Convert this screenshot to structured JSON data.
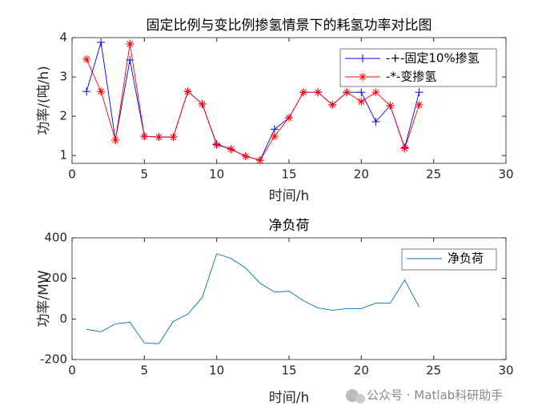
{
  "chart_data": [
    {
      "type": "line",
      "title": "固定比例与变比例掺氢情景下的耗氢功率对比图",
      "xlabel": "时间/h",
      "ylabel": "功率/(吨/h)",
      "x": [
        1,
        2,
        3,
        4,
        5,
        6,
        7,
        8,
        9,
        10,
        11,
        12,
        13,
        14,
        15,
        16,
        17,
        18,
        19,
        20,
        21,
        22,
        23,
        24
      ],
      "series": [
        {
          "name": "-+-固定10%掺氢",
          "color": "#0000ff",
          "marker": "+",
          "values": [
            2.63,
            3.88,
            1.39,
            3.43,
            1.49,
            1.47,
            1.47,
            2.63,
            2.31,
            1.29,
            1.16,
            0.98,
            0.88,
            1.67,
            1.96,
            2.61,
            2.61,
            2.29,
            2.61,
            2.61,
            1.86,
            2.27,
            1.2,
            2.61
          ]
        },
        {
          "name": "-*-变掺氢",
          "color": "#ff0000",
          "marker": "*",
          "values": [
            3.45,
            2.63,
            1.39,
            3.84,
            1.49,
            1.47,
            1.47,
            2.63,
            2.31,
            1.27,
            1.16,
            0.98,
            0.88,
            1.49,
            1.96,
            2.61,
            2.61,
            2.29,
            2.61,
            2.37,
            2.61,
            2.27,
            1.18,
            2.29
          ]
        }
      ],
      "xlim": [
        0,
        30
      ],
      "xticks": [
        0,
        5,
        10,
        15,
        20,
        25,
        30
      ],
      "ylim": [
        0.8,
        4
      ],
      "yticks": [
        1,
        2,
        3,
        4
      ],
      "legend": "northeast"
    },
    {
      "type": "line",
      "title": "净负荷",
      "xlabel": "时间/h",
      "ylabel": "功率/MW",
      "x": [
        1,
        2,
        3,
        4,
        5,
        6,
        7,
        8,
        9,
        10,
        11,
        12,
        13,
        14,
        15,
        16,
        17,
        18,
        19,
        20,
        21,
        22,
        23,
        24
      ],
      "series": [
        {
          "name": "净负荷",
          "color": "#0072bd",
          "marker": null,
          "values": [
            -51,
            -63,
            -24,
            -16,
            -118,
            -122,
            -12,
            24,
            106,
            322,
            298,
            251,
            176,
            133,
            137,
            90,
            55,
            43,
            51,
            51,
            78,
            78,
            192,
            59
          ]
        }
      ],
      "xlim": [
        0,
        30
      ],
      "xticks": [
        0,
        5,
        10,
        15,
        20,
        25,
        30
      ],
      "ylim": [
        -200,
        400
      ],
      "yticks": [
        -200,
        0,
        200,
        400
      ],
      "legend": "northeast"
    }
  ],
  "watermark": "公众号 · Matlab科研助手"
}
